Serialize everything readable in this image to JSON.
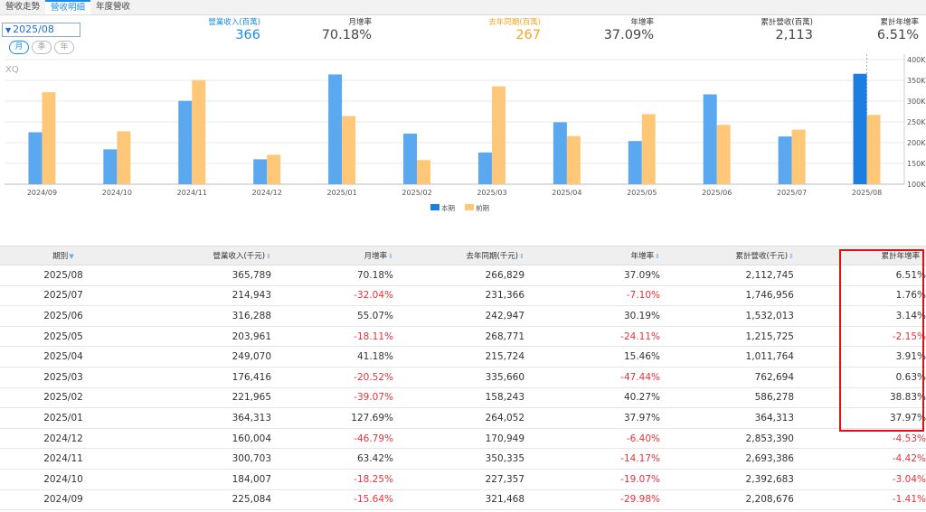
{
  "tabs": [
    {
      "label": "營收走勢",
      "active": false
    },
    {
      "label": "營收明細",
      "active": true
    },
    {
      "label": "年度營收",
      "active": false
    }
  ],
  "period_select": "2025/08",
  "pills": [
    "月",
    "季",
    "年"
  ],
  "stats": {
    "revenue": {
      "label": "營業收入(百萬)",
      "value": "366"
    },
    "mom": {
      "label": "月增率",
      "value": "70.18%"
    },
    "prev_year": {
      "label": "去年同期(百萬)",
      "value": "267"
    },
    "yoy": {
      "label": "年增率",
      "value": "37.09%"
    },
    "cumulative": {
      "label": "累計營收(百萬)",
      "value": "2,113"
    },
    "cum_yoy": {
      "label": "累計年增率",
      "value": "6.51%"
    }
  },
  "colors": {
    "current": "#5aa9f0",
    "current_highlight": "#1a7fe0",
    "previous": "#ffc878"
  },
  "chart_data": {
    "type": "bar",
    "watermark": "XQ",
    "categories": [
      "2024/09",
      "2024/10",
      "2024/11",
      "2024/12",
      "2025/01",
      "2025/02",
      "2025/03",
      "2025/04",
      "2025/05",
      "2025/06",
      "2025/07",
      "2025/08"
    ],
    "series": [
      {
        "name": "本期",
        "values": [
          225084,
          184007,
          300703,
          160004,
          364313,
          221965,
          176416,
          249070,
          203961,
          316288,
          214943,
          365789
        ]
      },
      {
        "name": "前期",
        "values": [
          321468,
          227357,
          350335,
          170949,
          264052,
          158243,
          335660,
          215724,
          268771,
          242947,
          231366,
          266829
        ]
      }
    ],
    "ylim": [
      100000,
      400000
    ],
    "yticks": [
      "100K",
      "150K",
      "200K",
      "250K",
      "300K",
      "350K",
      "400K"
    ],
    "ytick_values": [
      100000,
      150000,
      200000,
      250000,
      300000,
      350000,
      400000
    ],
    "legend": [
      "本期",
      "前期"
    ]
  },
  "table": {
    "headers": [
      "期別",
      "營業收入(千元)",
      "月增率",
      "去年同期(千元)",
      "年增率",
      "累計營收(千元)",
      "累計年增率"
    ],
    "rows": [
      [
        "2025/08",
        "365,789",
        "70.18%",
        "266,829",
        "37.09%",
        "2,112,745",
        "6.51%"
      ],
      [
        "2025/07",
        "214,943",
        "-32.04%",
        "231,366",
        "-7.10%",
        "1,746,956",
        "1.76%"
      ],
      [
        "2025/06",
        "316,288",
        "55.07%",
        "242,947",
        "30.19%",
        "1,532,013",
        "3.14%"
      ],
      [
        "2025/05",
        "203,961",
        "-18.11%",
        "268,771",
        "-24.11%",
        "1,215,725",
        "-2.15%"
      ],
      [
        "2025/04",
        "249,070",
        "41.18%",
        "215,724",
        "15.46%",
        "1,011,764",
        "3.91%"
      ],
      [
        "2025/03",
        "176,416",
        "-20.52%",
        "335,660",
        "-47.44%",
        "762,694",
        "0.63%"
      ],
      [
        "2025/02",
        "221,965",
        "-39.07%",
        "158,243",
        "40.27%",
        "586,278",
        "38.83%"
      ],
      [
        "2025/01",
        "364,313",
        "127.69%",
        "264,052",
        "37.97%",
        "364,313",
        "37.97%"
      ],
      [
        "2024/12",
        "160,004",
        "-46.79%",
        "170,949",
        "-6.40%",
        "2,853,390",
        "-4.53%"
      ],
      [
        "2024/11",
        "300,703",
        "63.42%",
        "350,335",
        "-14.17%",
        "2,693,386",
        "-4.42%"
      ],
      [
        "2024/10",
        "184,007",
        "-18.25%",
        "227,357",
        "-19.07%",
        "2,392,683",
        "-3.04%"
      ],
      [
        "2024/09",
        "225,084",
        "-15.64%",
        "321,468",
        "-29.98%",
        "2,208,676",
        "-1.41%"
      ]
    ]
  }
}
